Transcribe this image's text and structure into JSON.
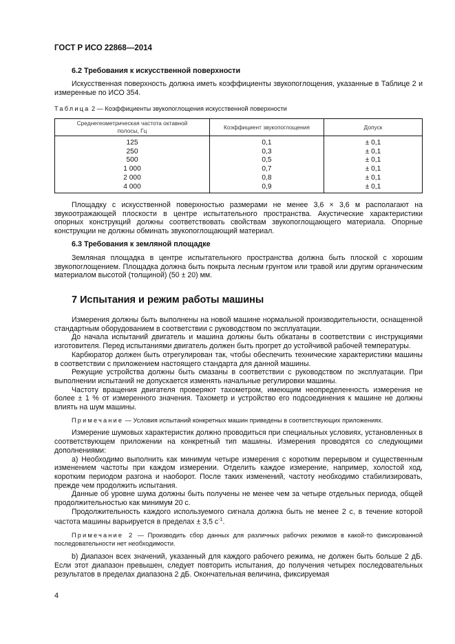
{
  "header": "ГОСТ Р ИСО 22868—2014",
  "s62": {
    "title": "6.2 Требования к искусственной поверхности",
    "p1": "Искусственная поверхность должна иметь коэффициенты звукопоглощения, указанные в Таблице 2 и измеренные по ИСО 354."
  },
  "table": {
    "caption_prefix": "Таблица",
    "caption": " 2 — Коэффициенты звукопоглощения искусственной поверхности",
    "headers": [
      "Среднегеометрическая частота октавной полосы, Гц",
      "Коэффициент звукопоглощения",
      "Допуск"
    ],
    "rows": [
      [
        "125",
        "0,1",
        "± 0,1"
      ],
      [
        "250",
        "0,3",
        "± 0,1"
      ],
      [
        "500",
        "0,5",
        "± 0,1"
      ],
      [
        "1 000",
        "0,7",
        "± 0,1"
      ],
      [
        "2 000",
        "0,8",
        "± 0,1"
      ],
      [
        "4 000",
        "0,9",
        "± 0,1"
      ]
    ]
  },
  "s62b": "Площадку с искусственной поверхностью размерами не менее 3,6 × 3,6 м располагают на звукоотражающей плоскости в центре испытательного пространства. Акустические характеристики опорных конструкций должны соответствовать свойствам звукопоглощающего материала. Опорные конструкции не должны обминать звукопоглощающий материал.",
  "s63": {
    "title": "6.3 Требования к земляной площадке",
    "p1": "Земляная площадка в центре испытательного пространства должна быть плоской с хорошим звукопоглощением. Площадка должна быть покрыта лесным грунтом или травой или другим органическим материалом высотой (толщиной) (50 ± 20) мм."
  },
  "s7": {
    "title": "7 Испытания и режим работы машины",
    "paras": [
      "Измерения должны быть выполнены на новой машине нормальной производительности, оснащенной стандартным оборудованием в соответствии с руководством по эксплуатации.",
      "До начала испытаний двигатель и машина должны быть обкатаны в соответствии с инструкциями изготовителя. Перед испытаниями двигатель должен быть прогрет до устойчивой рабочей температуры.",
      "Карбюратор должен быть отрегулирован так, чтобы обеспечить технические характеристики машины в соответствии с приложением настоящего стандарта для данной машины.",
      "Режущие устройства должны быть смазаны в соответствии с руководством по эксплуатации. При выполнении испытаний не допускается изменять начальные регулировки машины.",
      "Частоту вращения двигателя проверяют тахометром, имеющим неопределенность измерения не более ± 1 % от измеренного значения. Тахометр и устройство его подсоединения к машине не должны влиять на шум машины."
    ],
    "note1_label": "Примечание",
    "note1": " — Условия испытаний конкретных машин приведены в соответствующих приложениях.",
    "paras2": [
      "Измерение шумовых характеристик должно проводиться при специальных условиях, установленных в соответствующем приложении на конкретный тип машины. Измерения проводятся со следующими дополнениями:",
      "a) Необходимо выполнить как минимум четыре измерения с коротким перерывом и существенным изменением частоты при каждом измерении. Отделить каждое измерение, например, холостой ход, коротким периодом разгона и наоборот. После таких изменений, частоту необходимо стабилизировать, прежде чем продолжить испытания.",
      "Данные об уровне шума должны быть получены не менее чем за четыре отдельных периода, общей продолжительностью как минимум 20 с."
    ],
    "p_signal": "Продолжительность каждого используемого сигнала должна быть не менее 2 с, в течение которой частота машины варьируется в пределах ± 3,5 с",
    "p_signal_sup": "-1",
    "p_signal_end": ".",
    "note2_label": "Примечание 2",
    "note2": " — Производить сбор данных для различных рабочих режимов в какой-то фиксированной последовательности нет необходимости.",
    "pb": "b) Диапазон всех значений, указанный для каждого рабочего режима, не должен быть больше 2 дБ. Если этот диапазон превышен, следует повторить испытания, до получения четырех последовательных результатов в пределах диапазона 2 дБ. Окончательная величина, фиксируемая"
  },
  "page_number": "4"
}
